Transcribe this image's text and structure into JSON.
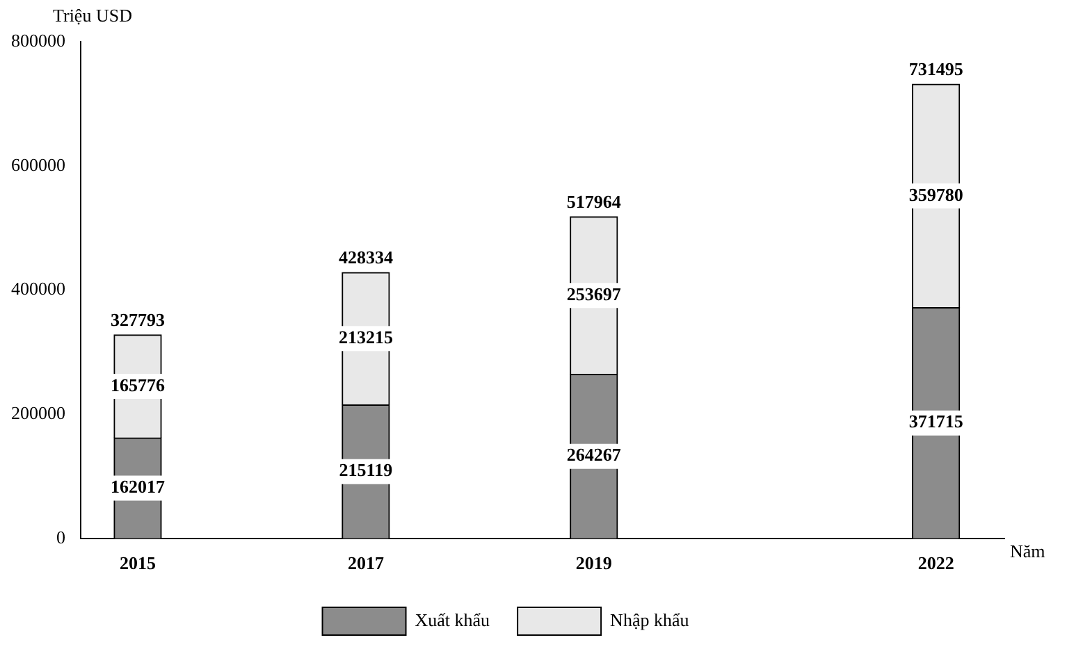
{
  "chart_data": {
    "type": "bar",
    "stacked": true,
    "xlabel": "Năm",
    "ylabel": "Triệu USD",
    "x": [
      2015,
      2017,
      2019,
      2022
    ],
    "xlim": [
      2014.5,
      2022.6
    ],
    "xticks": [
      2015,
      2017,
      2019,
      2022
    ],
    "ylim": [
      0,
      800000
    ],
    "yticks": [
      0,
      200000,
      400000,
      600000,
      800000
    ],
    "series": [
      {
        "name": "Xuất khẩu",
        "color": "#8c8c8c",
        "values": [
          162017,
          215119,
          264267,
          371715
        ]
      },
      {
        "name": "Nhập khẩu",
        "color": "#e8e8e8",
        "values": [
          165776,
          213215,
          253697,
          359780
        ]
      }
    ],
    "totals": [
      "327793",
      "428334",
      "517964",
      "731495"
    ],
    "data_labels": true,
    "grid": false,
    "legend": "bottom"
  }
}
